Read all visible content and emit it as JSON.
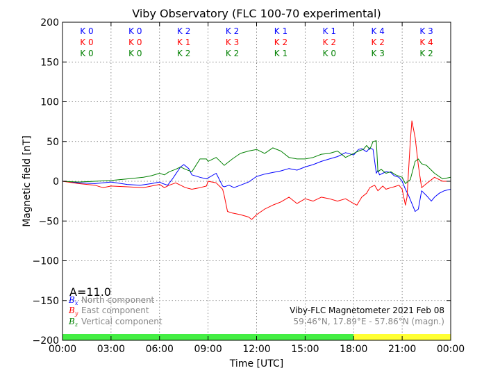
{
  "chart_data": {
    "type": "line",
    "title": "Viby Observatory (FLC 100-70 experimental)",
    "xlabel": "Time [UTC]",
    "ylabel": "Magnetic field [nT]",
    "xlim": [
      0,
      24
    ],
    "ylim": [
      -200,
      200
    ],
    "grid": true,
    "x_tick_labels": [
      "00:00",
      "03:00",
      "06:00",
      "09:00",
      "12:00",
      "15:00",
      "18:00",
      "21:00",
      "00:00"
    ],
    "y_ticks": [
      -200,
      -150,
      -100,
      -50,
      0,
      50,
      100,
      150,
      200
    ],
    "y_tick_labels": [
      "−200",
      "−150",
      "−100",
      "−50",
      "0",
      "50",
      "100",
      "150",
      "200"
    ],
    "series": [
      {
        "name": "North component",
        "symbol": "B",
        "subscript": "x",
        "color": "#0000ff",
        "x": [
          0,
          1,
          2,
          3,
          4,
          4.8,
          5.5,
          6,
          6.2,
          6.5,
          6.8,
          7,
          7.3,
          7.5,
          7.8,
          8,
          8.5,
          8.9,
          9.5,
          9.9,
          10,
          10.3,
          10.6,
          11,
          11.5,
          12,
          12.5,
          13,
          13.5,
          14,
          14.5,
          15,
          15.5,
          16,
          16.5,
          17,
          17.5,
          18,
          18.3,
          18.5,
          18.8,
          19,
          19.2,
          19.4,
          19.5,
          19.6,
          19.8,
          20,
          20.3,
          20.5,
          20.8,
          21,
          21.2,
          21.4,
          21.6,
          21.8,
          22,
          22.2,
          22.5,
          22.8,
          23,
          23.3,
          23.6,
          24
        ],
        "y": [
          0,
          -2,
          -3,
          -1,
          -4,
          -5,
          -3,
          -1,
          -3,
          -5,
          3,
          9,
          18,
          21,
          16,
          8,
          5,
          3,
          10,
          -6,
          -7,
          -5,
          -8,
          -5,
          -1,
          6,
          9,
          11,
          13,
          16,
          14,
          18,
          21,
          25,
          28,
          31,
          36,
          33,
          40,
          41,
          37,
          42,
          40,
          10,
          14,
          8,
          10,
          12,
          11,
          7,
          5,
          0,
          -10,
          -18,
          -28,
          -38,
          -35,
          -12,
          -18,
          -25,
          -20,
          -15,
          -12,
          -10
        ]
      },
      {
        "name": "East component",
        "symbol": "B",
        "subscript": "y",
        "color": "#ff0000",
        "x": [
          0,
          1,
          2,
          2.5,
          3,
          4,
          5,
          5.5,
          6,
          6.3,
          6.6,
          7,
          7.3,
          7.6,
          8,
          8.5,
          8.9,
          9,
          9.5,
          9.9,
          10,
          10.2,
          10.5,
          11,
          11.5,
          11.7,
          12,
          12.5,
          13,
          13.5,
          14,
          14.5,
          15,
          15.5,
          16,
          16.5,
          17,
          17.5,
          18,
          18.2,
          18.5,
          18.8,
          19,
          19.3,
          19.5,
          19.8,
          20,
          20.3,
          20.5,
          20.8,
          21,
          21.2,
          21.3,
          21.5,
          21.6,
          21.8,
          22,
          22.2,
          22.5,
          23,
          23.5,
          24
        ],
        "y": [
          0,
          -3,
          -5,
          -8,
          -6,
          -7,
          -8,
          -6,
          -4,
          -8,
          -5,
          -2,
          -5,
          -8,
          -10,
          -8,
          -6,
          0,
          -2,
          -10,
          -18,
          -38,
          -40,
          -42,
          -45,
          -48,
          -42,
          -35,
          -30,
          -26,
          -20,
          -28,
          -22,
          -25,
          -20,
          -22,
          -25,
          -22,
          -28,
          -30,
          -20,
          -15,
          -8,
          -5,
          -12,
          -6,
          -10,
          -8,
          -7,
          -5,
          -10,
          -30,
          -20,
          50,
          76,
          55,
          20,
          -8,
          -3,
          5,
          0,
          0
        ]
      },
      {
        "name": "Vertical component",
        "symbol": "B",
        "subscript": "z",
        "color": "#008000",
        "x": [
          0,
          1,
          2,
          3,
          4,
          5,
          5.5,
          6,
          6.3,
          6.6,
          7,
          7.3,
          7.6,
          8,
          8.5,
          8.9,
          9,
          9.5,
          9.9,
          10,
          10.5,
          11,
          11.5,
          12,
          12.5,
          13,
          13.5,
          14,
          14.5,
          15,
          15.5,
          16,
          16.5,
          17,
          17.5,
          18,
          18.3,
          18.6,
          18.8,
          19,
          19.2,
          19.4,
          19.5,
          19.7,
          20,
          20.3,
          20.6,
          21,
          21.2,
          21.5,
          21.8,
          22,
          22.2,
          22.5,
          23,
          23.5,
          24
        ],
        "y": [
          0,
          -1,
          0,
          1,
          3,
          5,
          7,
          10,
          8,
          12,
          15,
          18,
          15,
          12,
          28,
          28,
          25,
          30,
          22,
          20,
          28,
          35,
          38,
          40,
          35,
          42,
          38,
          30,
          28,
          28,
          30,
          34,
          35,
          38,
          30,
          35,
          38,
          40,
          45,
          40,
          50,
          51,
          12,
          15,
          10,
          12,
          8,
          5,
          -3,
          2,
          25,
          28,
          22,
          20,
          10,
          3,
          5
        ]
      }
    ],
    "k_indices": [
      {
        "row_color": "#0000ff",
        "values": [
          "K 0",
          "K 0",
          "K 2",
          "K 2",
          "K 1",
          "K 1",
          "K 4",
          "K 3"
        ]
      },
      {
        "row_color": "#ff0000",
        "values": [
          "K 0",
          "K 0",
          "K 1",
          "K 3",
          "K 2",
          "K 2",
          "K 2",
          "K 4"
        ]
      },
      {
        "row_color": "#008000",
        "values": [
          "K 0",
          "K 0",
          "K 2",
          "K 2",
          "K 1",
          "K 0",
          "K 3",
          "K 2"
        ]
      }
    ],
    "activity_bar": [
      {
        "from": 0,
        "to": 18,
        "color": "#44ee44"
      },
      {
        "from": 18,
        "to": 24,
        "color": "#ffff33"
      }
    ],
    "a_index": "A=11.0",
    "station": "Viby-FLC Magnetometer 2021 Feb 08",
    "coordinates": "59.46°N, 17.89°E - 57.86°N (magn.)"
  }
}
